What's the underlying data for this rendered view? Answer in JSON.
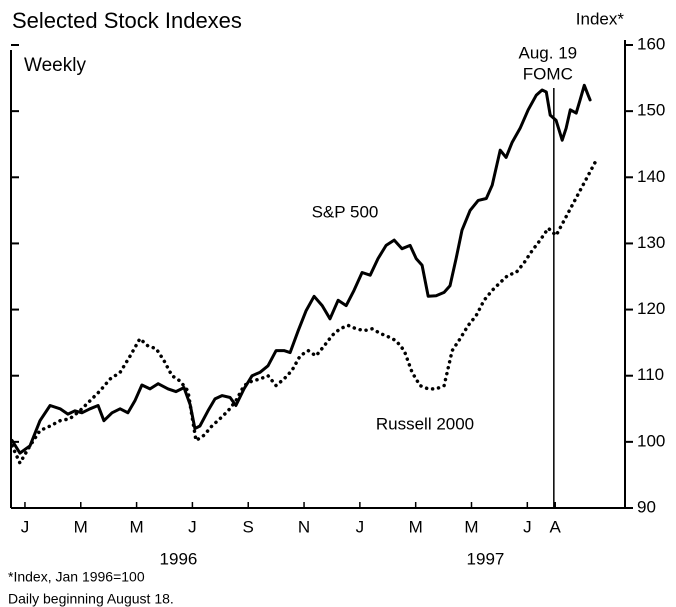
{
  "chart_data": {
    "type": "line",
    "title": "Selected Stock Indexes",
    "subtitle": "Weekly",
    "ylabel": "Index*",
    "footnotes": [
      "*Index, Jan 1996=100",
      "Daily beginning August 18."
    ],
    "year_labels": [
      "1996",
      "1997"
    ],
    "xlim": [
      0,
      22
    ],
    "xticks": [
      {
        "value": 0.5,
        "label": "J"
      },
      {
        "value": 2.5,
        "label": "M"
      },
      {
        "value": 4.5,
        "label": "M"
      },
      {
        "value": 6.5,
        "label": "J"
      },
      {
        "value": 8.5,
        "label": "S"
      },
      {
        "value": 10.5,
        "label": "N"
      },
      {
        "value": 12.5,
        "label": "J"
      },
      {
        "value": 14.5,
        "label": "M"
      },
      {
        "value": 16.5,
        "label": "M"
      },
      {
        "value": 18.5,
        "label": "J"
      },
      {
        "value": 19.5,
        "label": "A"
      }
    ],
    "ylim": [
      90,
      160
    ],
    "yticks": [
      90,
      100,
      110,
      120,
      130,
      140,
      150,
      160
    ],
    "annotations": [
      {
        "lines": [
          "Aug. 19",
          "FOMC"
        ],
        "x": 19.45
      }
    ],
    "series": [
      {
        "name": "S&P 500",
        "color": "#000000",
        "dash": "solid",
        "x": [
          0.04,
          0.32,
          0.68,
          1.04,
          1.4,
          1.76,
          2.04,
          2.29,
          2.54,
          2.83,
          3.12,
          3.33,
          3.62,
          3.91,
          4.19,
          4.44,
          4.69,
          4.98,
          5.27,
          5.63,
          5.91,
          6.2,
          6.42,
          6.59,
          6.77,
          7.06,
          7.31,
          7.56,
          7.85,
          8.06,
          8.35,
          8.64,
          8.92,
          9.21,
          9.5,
          9.78,
          10.0,
          10.29,
          10.57,
          10.86,
          11.15,
          11.43,
          11.72,
          12.01,
          12.29,
          12.58,
          12.87,
          13.15,
          13.44,
          13.73,
          14.01,
          14.3,
          14.52,
          14.73,
          14.95,
          15.23,
          15.52,
          15.73,
          15.95,
          16.16,
          16.45,
          16.74,
          17.03,
          17.24,
          17.53,
          17.74,
          17.96,
          18.24,
          18.53,
          18.82,
          19.03,
          19.18,
          19.32,
          19.53,
          19.75,
          19.89,
          20.04,
          20.25,
          20.39,
          20.54,
          20.68,
          20.75
        ],
        "values": [
          100.2,
          98.3,
          99.4,
          103.2,
          105.5,
          105.0,
          104.2,
          104.7,
          104.4,
          105.0,
          105.5,
          103.2,
          104.4,
          105.0,
          104.4,
          106.2,
          108.6,
          108.0,
          108.8,
          108.0,
          107.6,
          108.2,
          105.6,
          102.0,
          102.4,
          104.7,
          106.5,
          107.0,
          106.7,
          105.5,
          108.0,
          110.0,
          110.5,
          111.5,
          113.8,
          113.8,
          113.5,
          116.8,
          119.8,
          122.0,
          120.6,
          118.6,
          121.4,
          120.6,
          122.9,
          125.6,
          125.2,
          127.7,
          129.7,
          130.5,
          129.2,
          129.7,
          127.7,
          126.7,
          122.0,
          122.1,
          122.6,
          123.6,
          127.7,
          132.0,
          135.0,
          136.5,
          136.8,
          138.8,
          144.1,
          143.0,
          145.3,
          147.4,
          150.2,
          152.4,
          153.2,
          152.9,
          149.4,
          148.6,
          145.6,
          147.4,
          150.2,
          149.7,
          151.7,
          153.9,
          152.4,
          151.7
        ]
      },
      {
        "name": "Russell 2000",
        "color": "#000000",
        "dash": "dotted",
        "x": [
          0.04,
          0.32,
          0.68,
          1.04,
          1.4,
          1.76,
          2.11,
          2.47,
          2.83,
          3.19,
          3.55,
          3.91,
          4.27,
          4.62,
          4.91,
          5.2,
          5.48,
          5.77,
          6.06,
          6.34,
          6.63,
          6.92,
          7.2,
          7.49,
          7.78,
          8.06,
          8.35,
          8.64,
          8.92,
          9.21,
          9.5,
          9.78,
          10.07,
          10.36,
          10.65,
          10.93,
          11.22,
          11.51,
          11.79,
          12.08,
          12.37,
          12.65,
          12.94,
          13.23,
          13.51,
          13.8,
          14.09,
          14.37,
          14.66,
          14.95,
          15.23,
          15.52,
          15.81,
          16.09,
          16.38,
          16.67,
          16.95,
          17.24,
          17.53,
          17.81,
          18.1,
          18.39,
          18.67,
          18.96,
          19.25,
          19.53,
          19.82,
          20.11,
          20.39,
          20.68,
          20.97
        ],
        "values": [
          99.4,
          96.8,
          99.4,
          101.7,
          102.4,
          103.2,
          103.5,
          104.7,
          106.2,
          107.7,
          109.5,
          110.5,
          113.0,
          115.6,
          114.5,
          114.1,
          112.3,
          110.0,
          109.2,
          107.7,
          100.2,
          101.0,
          102.4,
          103.5,
          104.7,
          106.2,
          108.5,
          109.2,
          109.5,
          110.0,
          108.5,
          109.5,
          110.8,
          113.0,
          113.8,
          113.0,
          114.5,
          116.1,
          117.1,
          117.6,
          117.1,
          116.8,
          117.1,
          116.4,
          115.9,
          115.3,
          113.8,
          110.5,
          108.5,
          108.0,
          108.0,
          108.5,
          113.8,
          115.6,
          117.6,
          119.1,
          121.4,
          122.9,
          124.1,
          125.2,
          125.6,
          127.1,
          128.9,
          130.5,
          132.3,
          131.2,
          133.5,
          135.8,
          138.0,
          140.3,
          142.6
        ]
      }
    ]
  }
}
